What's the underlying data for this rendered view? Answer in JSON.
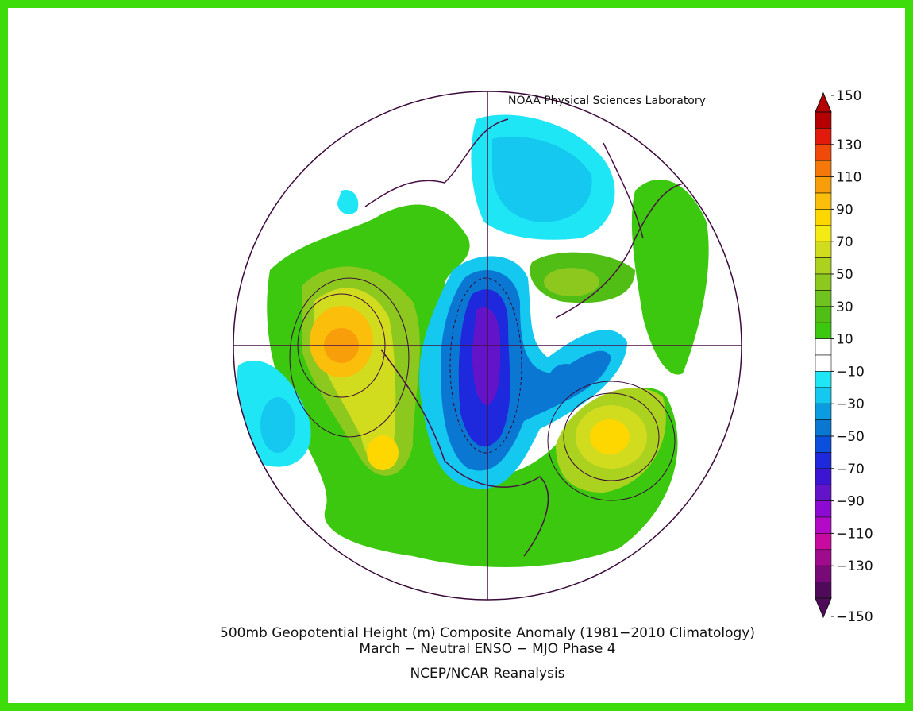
{
  "header": {
    "lab": "NOAA Physical Sciences Laboratory"
  },
  "caption": {
    "line1": "500mb Geopotential Height (m) Composite Anomaly (1981−2010 Climatology)",
    "line2": "March − Neutral ENSO − MJO Phase 4",
    "source": "NCEP/NCAR Reanalysis"
  },
  "colorbar": {
    "range": [
      -150,
      150
    ],
    "ticks": [
      150,
      130,
      110,
      90,
      70,
      50,
      30,
      10,
      {
        "value": -10,
        "label": "−10"
      },
      {
        "value": -30,
        "label": "−30"
      },
      {
        "value": -50,
        "label": "−50"
      },
      {
        "value": -70,
        "label": "−70"
      },
      {
        "value": -90,
        "label": "−90"
      },
      {
        "value": -110,
        "label": "−110"
      },
      {
        "value": -130,
        "label": "−130"
      },
      {
        "value": -150,
        "label": "−150"
      }
    ],
    "colors": [
      "#b40000",
      "#e11a0c",
      "#f04a0a",
      "#f5780a",
      "#f89e0a",
      "#fbbe0a",
      "#ffd700",
      "#f5eb14",
      "#d2dc1e",
      "#aad21e",
      "#8cc81e",
      "#6ec31e",
      "#50be14",
      "#3cc80f",
      "#ffffff",
      "#ffffff",
      "#1ee6f5",
      "#14c8f0",
      "#0a9be1",
      "#0a78d2",
      "#0a50dc",
      "#1e28dc",
      "#3c14d2",
      "#6414c8",
      "#8c0ad2",
      "#b40ac8",
      "#c80aa0",
      "#a00a8c",
      "#780a78",
      "#500a5a"
    ]
  }
}
